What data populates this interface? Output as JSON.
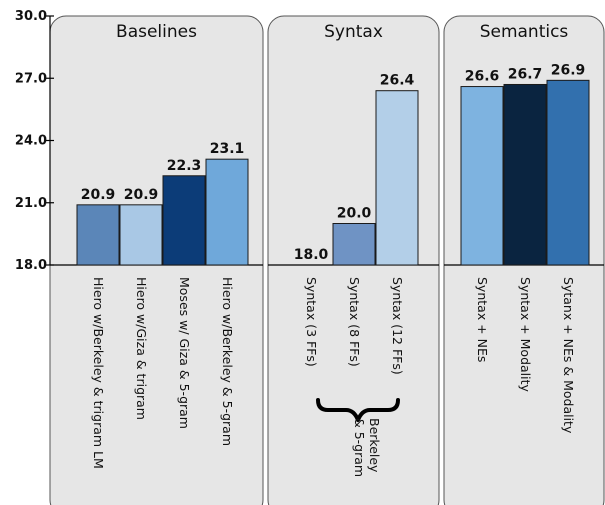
{
  "chart_data": {
    "type": "bar",
    "ylim": [
      18.0,
      30.0
    ],
    "yticks": [
      "30.0",
      "27.0",
      "24.0",
      "21.0",
      "18.0"
    ],
    "ytick_values": [
      30.0,
      27.0,
      24.0,
      21.0,
      18.0
    ],
    "grid": false,
    "groups": [
      {
        "title": "Baselines",
        "bars": [
          {
            "label": "Hiero w/Berkeley & trigram LM",
            "value": 20.9,
            "value_label": "20.9",
            "color": "#5b86b8"
          },
          {
            "label": "Hiero w/Giza  & trigram",
            "value": 20.9,
            "value_label": "20.9",
            "color": "#a9c8e5"
          },
          {
            "label": "Moses w/ Giza & 5-gram",
            "value": 22.3,
            "value_label": "22.3",
            "color": "#0c3c78"
          },
          {
            "label": "Hiero w/Berkeley & 5-gram",
            "value": 23.1,
            "value_label": "23.1",
            "color": "#6fa8da"
          }
        ]
      },
      {
        "title": "Syntax",
        "bars": [
          {
            "label": "Syntax (3 FFs)",
            "value": 18.0,
            "value_label": "18.0",
            "color": "#ffffff"
          },
          {
            "label": "Syntax (8 FFs)",
            "value": 20.0,
            "value_label": "20.0",
            "color": "#6f93c4"
          },
          {
            "label": "Syntax (12 FFs)",
            "value": 26.4,
            "value_label": "26.4",
            "color": "#b3cfe8"
          }
        ],
        "note": [
          "Berkeley",
          "& 5-gram"
        ]
      },
      {
        "title": "Semantics",
        "bars": [
          {
            "label": "Syntax + NEs",
            "value": 26.6,
            "value_label": "26.6",
            "color": "#7eb3e0"
          },
          {
            "label": "Syntax + Modality",
            "value": 26.7,
            "value_label": "26.7",
            "color": "#0a2440"
          },
          {
            "label": "Sytanx + NEs & Modality",
            "value": 26.9,
            "value_label": "26.9",
            "color": "#3270ae"
          }
        ]
      }
    ],
    "colors": {
      "panel_fill": "#e6e6e6",
      "panel_stroke": "#555555",
      "bar_stroke": "#1a1a1a",
      "axis": "#000000"
    }
  }
}
